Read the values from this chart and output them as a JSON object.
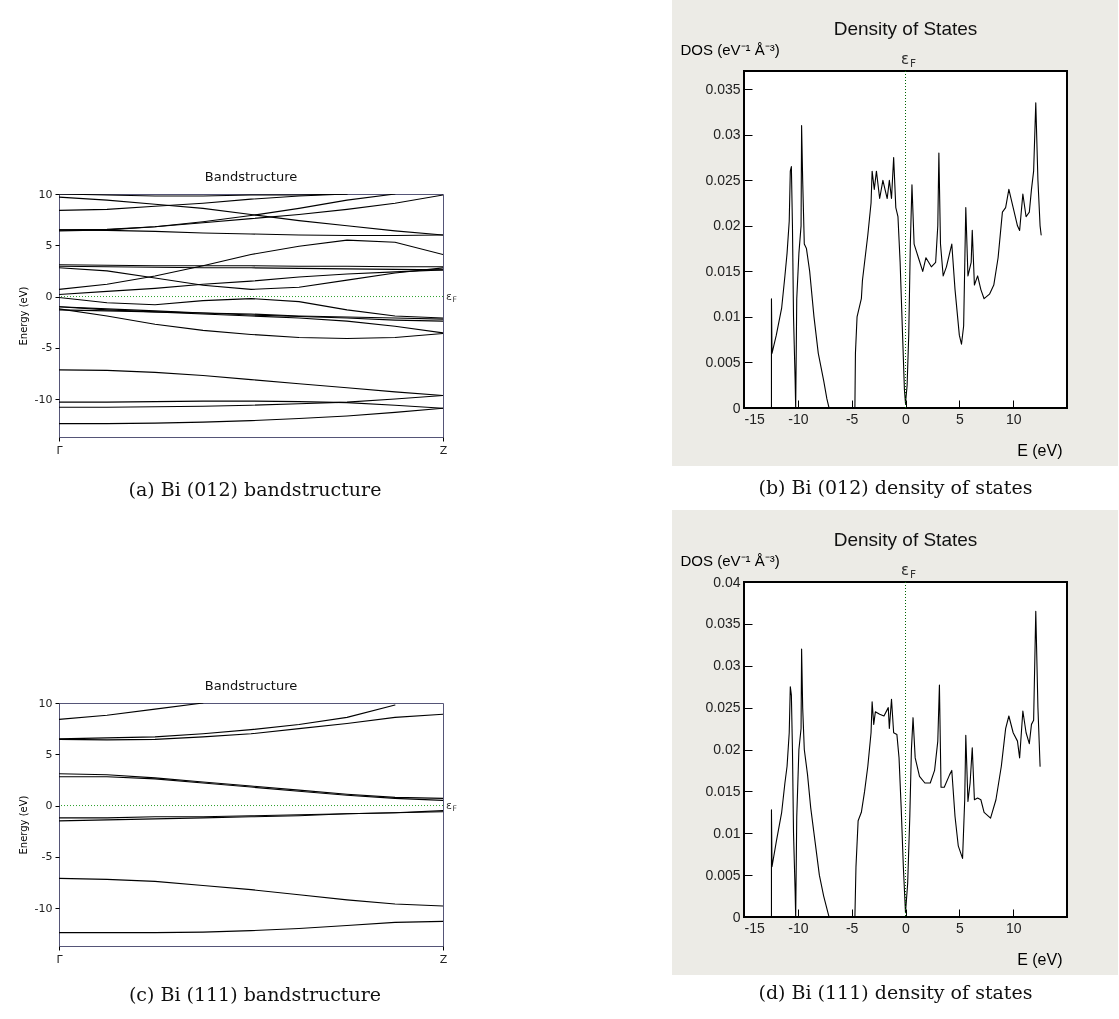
{
  "chart_data": [
    {
      "type": "line",
      "title": "Bandstructure",
      "ylabel": "Energy (eV)",
      "annotations": [
        "(a) Bi (012) bandstructure"
      ],
      "categories": [
        "Γ",
        null,
        null,
        null,
        null,
        null,
        null,
        null,
        "Z"
      ],
      "ylim": [
        -13.7,
        10
      ],
      "yticks": [
        -10,
        -5,
        0,
        5,
        10
      ],
      "ref_lines": [
        {
          "axis": "y",
          "value": 0,
          "label": "ε$_{F}$",
          "color": "#2ca02c",
          "line_style": "dotted"
        }
      ],
      "series": [
        {
          "color": "#000000",
          "values": [
            -12.4,
            -12.4,
            -12.35,
            -12.25,
            -12.1,
            -11.9,
            -11.65,
            -11.3,
            -10.9
          ]
        },
        {
          "color": "#000000",
          "values": [
            -10.8,
            -10.8,
            -10.75,
            -10.7,
            -10.6,
            -10.45,
            -10.3,
            -10.0,
            -9.65
          ]
        },
        {
          "color": "#000000",
          "values": [
            -10.3,
            -10.3,
            -10.25,
            -10.2,
            -10.2,
            -10.25,
            -10.35,
            -10.6,
            -10.9
          ]
        },
        {
          "color": "#000000",
          "values": [
            -7.15,
            -7.2,
            -7.4,
            -7.7,
            -8.1,
            -8.5,
            -8.9,
            -9.3,
            -9.65
          ]
        },
        {
          "color": "#000000",
          "values": [
            -1.2,
            -1.9,
            -2.7,
            -3.3,
            -3.7,
            -4.0,
            -4.1,
            -4.0,
            -3.6
          ]
        },
        {
          "color": "#000000",
          "values": [
            -0.1,
            -0.6,
            -0.8,
            -0.4,
            -0.2,
            -0.5,
            -1.3,
            -1.9,
            -2.1
          ]
        },
        {
          "color": "#000000",
          "values": [
            -1.0,
            -1.3,
            -1.5,
            -1.7,
            -1.9,
            -2.1,
            -2.4,
            -2.9,
            -3.55
          ]
        },
        {
          "color": "#000000",
          "values": [
            -1.0,
            -1.2,
            -1.4,
            -1.6,
            -1.7,
            -1.9,
            -2.0,
            -2.1,
            -2.2
          ]
        },
        {
          "color": "#000000",
          "values": [
            -1.3,
            -1.4,
            -1.5,
            -1.6,
            -1.8,
            -1.95,
            -2.1,
            -2.3,
            -2.4
          ]
        },
        {
          "color": "#000000",
          "values": [
            0.7,
            1.2,
            2.0,
            3.0,
            4.1,
            4.9,
            5.5,
            5.3,
            4.1
          ]
        },
        {
          "color": "#000000",
          "values": [
            0.2,
            0.5,
            0.8,
            1.2,
            1.5,
            1.9,
            2.2,
            2.4,
            2.6
          ]
        },
        {
          "color": "#000000",
          "values": [
            2.8,
            2.5,
            1.8,
            1.1,
            0.7,
            0.9,
            1.6,
            2.3,
            2.8
          ]
        },
        {
          "color": "#000000",
          "values": [
            3.1,
            3.05,
            3.0,
            3.0,
            3.0,
            2.95,
            2.95,
            2.9,
            2.9
          ]
        },
        {
          "color": "#000000",
          "values": [
            2.95,
            2.9,
            2.85,
            2.8,
            2.8,
            2.75,
            2.7,
            2.65,
            2.6
          ]
        },
        {
          "color": "#000000",
          "values": [
            6.5,
            6.45,
            6.35,
            6.2,
            6.1,
            6.0,
            5.95,
            5.95,
            6.0
          ]
        },
        {
          "color": "#000000",
          "values": [
            6.5,
            6.55,
            6.8,
            7.2,
            7.6,
            8.0,
            8.5,
            9.1,
            9.9
          ]
        },
        {
          "color": "#000000",
          "values": [
            6.4,
            6.5,
            6.8,
            7.3,
            7.9,
            8.6,
            9.4,
            10,
            null
          ]
        },
        {
          "color": "#000000",
          "values": [
            8.4,
            8.5,
            8.8,
            9.1,
            9.5,
            9.8,
            10,
            null,
            null
          ]
        },
        {
          "color": "#000000",
          "values": [
            9.7,
            9.4,
            9.0,
            8.6,
            8.0,
            7.4,
            6.9,
            6.4,
            6.0
          ]
        },
        {
          "color": "#000000",
          "values": [
            10,
            9.9,
            9.8,
            9.8,
            9.9,
            9.9,
            10,
            null,
            null
          ]
        }
      ]
    },
    {
      "type": "line",
      "title": "Density of States",
      "ylabel": "DOS (eV⁻¹ Å⁻³)",
      "xlabel": "E (eV)",
      "annotations": [
        "(b) Bi (012) density of states"
      ],
      "xlim": [
        -15,
        15
      ],
      "xticks": [
        -15,
        -10,
        -5,
        0,
        5,
        10,
        {
          "value": 15,
          "label": null
        }
      ],
      "ylim": [
        0,
        0.037
      ],
      "yticks": [
        0,
        0.005,
        0.01,
        0.015,
        0.02,
        0.025,
        0.03,
        0.035
      ],
      "ref_lines": [
        {
          "axis": "x",
          "value": 0,
          "label": "ε$_{F}$",
          "color": "#006400",
          "line_style": "dotted"
        }
      ],
      "x": [
        -12.45,
        -12.45,
        -12.4,
        -12,
        -11.5,
        -11.2,
        -11,
        -10.8,
        -10.7,
        -10.6,
        -10.5,
        -10.4,
        -10.25,
        -10.2,
        -10.1,
        -9.9,
        -9.7,
        -9.65,
        -9.55,
        -9.4,
        -9.2,
        -8.9,
        -8.5,
        -8.1,
        -7.6,
        -7.3,
        -7.1,
        -4.7,
        -4.65,
        -4.5,
        -4.1,
        -4,
        -3.8,
        -3.5,
        -3.2,
        -3.1,
        -2.9,
        -2.7,
        -2.4,
        -2.1,
        -1.7,
        -1.5,
        -1.3,
        -1.1,
        -0.9,
        -0.7,
        -0.5,
        -0.3,
        -0.1,
        0,
        0.15,
        0.3,
        0.45,
        0.6,
        0.8,
        1.2,
        1.6,
        1.9,
        2.4,
        2.8,
        3,
        3.1,
        3.25,
        3.5,
        3.8,
        4.1,
        4.3,
        4.6,
        5,
        5.2,
        5.4,
        5.5,
        5.6,
        5.8,
        6.1,
        6.2,
        6.4,
        6.7,
        7,
        7.3,
        7.8,
        8.2,
        8.6,
        9,
        9.3,
        9.6,
        10,
        10.4,
        10.6,
        10.9,
        11.2,
        11.5,
        11.7,
        11.9,
        12.1,
        12.3,
        12.5,
        12.6
      ],
      "series": [
        {
          "color": "#000000",
          "values": [
            0,
            0.012,
            0.006,
            0.008,
            0.011,
            0.0145,
            0.017,
            0.0205,
            0.026,
            0.0265,
            0.02,
            0.01,
            0.003,
            0,
            0.012,
            0.017,
            0.02,
            0.031,
            0.025,
            0.018,
            0.0175,
            0.015,
            0.01,
            0.006,
            0.003,
            0.001,
            0,
            0,
            0.006,
            0.01,
            0.012,
            0.014,
            0.016,
            0.019,
            0.0225,
            0.026,
            0.024,
            0.026,
            0.023,
            0.025,
            0.023,
            0.025,
            0.023,
            0.0275,
            0.022,
            0.021,
            0.016,
            0.009,
            0.002,
            0.0005,
            0.0025,
            0.008,
            0.018,
            0.0245,
            0.018,
            0.0165,
            0.015,
            0.0165,
            0.0155,
            0.016,
            0.02,
            0.028,
            0.018,
            0.0145,
            0.0155,
            0.017,
            0.018,
            0.013,
            0.008,
            0.007,
            0.009,
            0.0155,
            0.022,
            0.0145,
            0.016,
            0.0195,
            0.0135,
            0.0145,
            0.013,
            0.012,
            0.0125,
            0.0135,
            0.0165,
            0.0215,
            0.022,
            0.024,
            0.022,
            0.02,
            0.0195,
            0.0235,
            0.021,
            0.0215,
            0.024,
            0.026,
            0.0335,
            0.025,
            0.02,
            0.019
          ]
        }
      ]
    },
    {
      "type": "line",
      "title": "Bandstructure",
      "ylabel": "Energy (eV)",
      "annotations": [
        "(c) Bi (111) bandstructure"
      ],
      "categories": [
        "Γ",
        null,
        null,
        null,
        null,
        null,
        null,
        null,
        "Z"
      ],
      "ylim": [
        -13.7,
        10
      ],
      "yticks": [
        -10,
        -5,
        0,
        5,
        10
      ],
      "ref_lines": [
        {
          "axis": "y",
          "value": 0,
          "label": "ε$_{F}$",
          "color": "#2ca02c",
          "line_style": "dotted"
        }
      ],
      "series": [
        {
          "color": "#000000",
          "values": [
            -12.4,
            -12.4,
            -12.4,
            -12.35,
            -12.2,
            -12.0,
            -11.7,
            -11.4,
            -11.3
          ]
        },
        {
          "color": "#000000",
          "values": [
            -7.1,
            -7.2,
            -7.4,
            -7.8,
            -8.2,
            -8.7,
            -9.2,
            -9.6,
            -9.8
          ]
        },
        {
          "color": "#000000",
          "values": [
            -1.2,
            -1.2,
            -1.1,
            -1.1,
            -1.0,
            -0.9,
            -0.8,
            -0.7,
            -0.5
          ]
        },
        {
          "color": "#000000",
          "values": [
            -1.5,
            -1.4,
            -1.3,
            -1.2,
            -1.1,
            -1.0,
            -0.8,
            -0.7,
            -0.6
          ]
        },
        {
          "color": "#000000",
          "values": [
            3.1,
            3.0,
            2.7,
            2.3,
            1.9,
            1.5,
            1.1,
            0.8,
            0.7
          ]
        },
        {
          "color": "#000000",
          "values": [
            2.8,
            2.8,
            2.6,
            2.2,
            1.8,
            1.4,
            1.0,
            0.7,
            0.5
          ]
        },
        {
          "color": "#000000",
          "values": [
            6.5,
            6.6,
            6.7,
            7.0,
            7.4,
            7.9,
            8.6,
            9.8,
            null
          ]
        },
        {
          "color": "#000000",
          "values": [
            6.45,
            6.4,
            6.45,
            6.7,
            7.0,
            7.5,
            8.0,
            8.6,
            8.9
          ]
        },
        {
          "color": "#000000",
          "values": [
            8.4,
            8.8,
            9.4,
            10,
            null,
            null,
            null,
            null,
            null
          ]
        }
      ]
    },
    {
      "type": "line",
      "title": "Density of States",
      "ylabel": "DOS (eV⁻¹ Å⁻³)",
      "xlabel": "E (eV)",
      "annotations": [
        "(d) Bi (111) density of states"
      ],
      "xlim": [
        -15,
        15
      ],
      "xticks": [
        -15,
        -10,
        -5,
        0,
        5,
        10,
        {
          "value": 15,
          "label": null
        }
      ],
      "ylim": [
        0,
        0.04
      ],
      "yticks": [
        0,
        0.005,
        0.01,
        0.015,
        0.02,
        0.025,
        0.03,
        0.035,
        0.04
      ],
      "ref_lines": [
        {
          "axis": "x",
          "value": 0,
          "label": "ε$_{F}$",
          "color": "#006400",
          "line_style": "dotted"
        }
      ],
      "x": [
        -12.45,
        -12.45,
        -12.4,
        -12,
        -11.5,
        -11.2,
        -11,
        -10.8,
        -10.7,
        -10.6,
        -10.5,
        -10.4,
        -10.25,
        -10.2,
        -10.1,
        -9.9,
        -9.7,
        -9.65,
        -9.55,
        -9.4,
        -9.1,
        -8.8,
        -8.4,
        -8,
        -7.6,
        -7.2,
        -7.1,
        -4.7,
        -4.6,
        -4.4,
        -4.1,
        -3.8,
        -3.5,
        -3.2,
        -3.1,
        -2.95,
        -2.8,
        -2.4,
        -2,
        -1.6,
        -1.5,
        -1.3,
        -1.1,
        -0.8,
        -0.6,
        -0.4,
        -0.2,
        0,
        0.2,
        0.4,
        0.55,
        0.7,
        0.9,
        1.3,
        1.8,
        2.3,
        2.7,
        3,
        3.15,
        3.3,
        3.6,
        4.1,
        4.3,
        4.6,
        4.9,
        5.3,
        5.5,
        5.6,
        5.8,
        6,
        6.2,
        6.4,
        6.7,
        7,
        7.3,
        7.9,
        8.4,
        8.9,
        9.3,
        9.6,
        10,
        10.4,
        10.6,
        10.9,
        11.2,
        11.5,
        11.7,
        11.9,
        12.1,
        12.3,
        12.5
      ],
      "series": [
        {
          "color": "#000000",
          "values": [
            0,
            0.0128,
            0.006,
            0.009,
            0.0125,
            0.016,
            0.018,
            0.022,
            0.0275,
            0.0265,
            0.02,
            0.01,
            0.003,
            0,
            0.012,
            0.02,
            0.0225,
            0.032,
            0.025,
            0.02,
            0.017,
            0.013,
            0.009,
            0.005,
            0.0025,
            0.0005,
            0,
            0,
            0.006,
            0.0115,
            0.0125,
            0.015,
            0.018,
            0.022,
            0.0257,
            0.023,
            0.0245,
            0.0242,
            0.024,
            0.025,
            0.0225,
            0.026,
            0.022,
            0.0218,
            0.019,
            0.013,
            0.006,
            0.0005,
            0.004,
            0.012,
            0.02,
            0.0238,
            0.019,
            0.0168,
            0.016,
            0.016,
            0.0175,
            0.021,
            0.0277,
            0.0155,
            0.0155,
            0.017,
            0.0175,
            0.012,
            0.0085,
            0.007,
            0.014,
            0.0217,
            0.0138,
            0.016,
            0.0202,
            0.014,
            0.0142,
            0.014,
            0.0125,
            0.0118,
            0.014,
            0.018,
            0.0225,
            0.024,
            0.022,
            0.021,
            0.019,
            0.0246,
            0.022,
            0.0207,
            0.023,
            0.0235,
            0.0365,
            0.025,
            0.018
          ]
        }
      ]
    }
  ]
}
